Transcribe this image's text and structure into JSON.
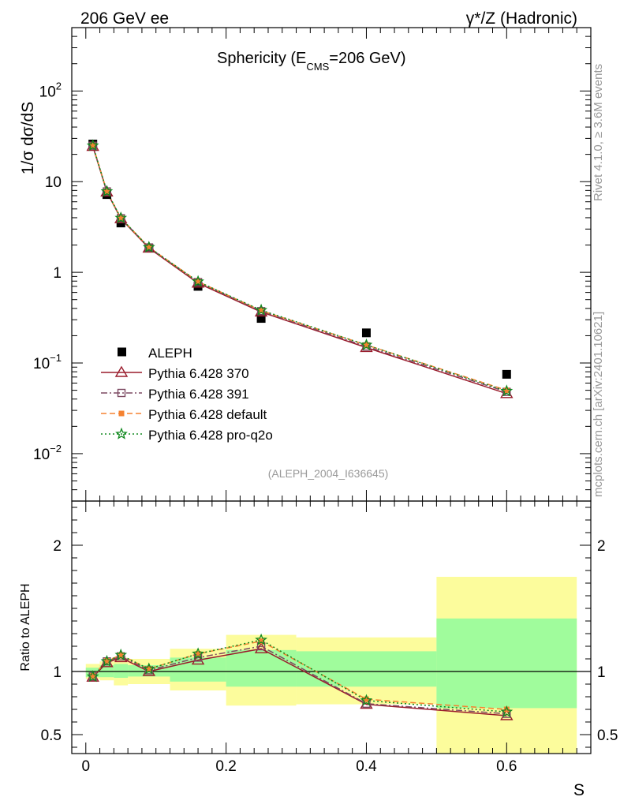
{
  "header": {
    "left_label": "206 GeV ee",
    "right_label": "γ*/Z (Hadronic)"
  },
  "side_labels": {
    "rivet": "Rivet 4.1.0, ≥ 3.6M events",
    "mcplots": "mcplots.cern.ch [arXiv:2401.10621]"
  },
  "chart_data": {
    "type": "scatter",
    "title_prefix": "Sphericity (E",
    "title_sub": "CMS",
    "title_suffix": "=206 GeV)",
    "analysis_id": "(ALEPH_2004_I636645)",
    "ylabel_main": "1/σ  dσ/dS",
    "ylabel_ratio": "Ratio to ALEPH",
    "xlabel": "S",
    "x_range": [
      -0.02,
      0.72
    ],
    "y_range_main": [
      0.003,
      500
    ],
    "y_range_ratio": [
      0.35,
      2.35
    ],
    "x_ticks": [
      "0",
      "0.2",
      "0.4",
      "0.6"
    ],
    "x_tick_values": [
      0,
      0.2,
      0.4,
      0.6
    ],
    "y_ticks_main": [
      {
        "value": 0.01,
        "base": "10",
        "exp": "−2"
      },
      {
        "value": 0.1,
        "base": "10",
        "exp": "−1"
      },
      {
        "value": 1,
        "base": "1",
        "exp": ""
      },
      {
        "value": 10,
        "base": "10",
        "exp": ""
      },
      {
        "value": 100,
        "base": "10",
        "exp": "2"
      }
    ],
    "y_ticks_ratio": [
      {
        "value": 0.5,
        "label": "0.5"
      },
      {
        "value": 1,
        "label": "1"
      },
      {
        "value": 2,
        "label": "2"
      }
    ],
    "data": {
      "name": "ALEPH",
      "color": "#000000",
      "x": [
        0.01,
        0.03,
        0.05,
        0.09,
        0.16,
        0.25,
        0.4,
        0.6
      ],
      "y": [
        26,
        7.2,
        3.5,
        1.85,
        0.7,
        0.31,
        0.215,
        0.075
      ]
    },
    "series": [
      {
        "name": "Pythia 6.428 370",
        "color": "#9a1c2c",
        "dash": "solid",
        "marker": "triangle",
        "values": [
          24.5,
          7.7,
          3.9,
          1.85,
          0.76,
          0.365,
          0.148,
          0.046
        ]
      },
      {
        "name": "Pythia 6.428 391",
        "color": "#7d4a62",
        "dash": "dashdot",
        "marker": "square",
        "values": [
          24.9,
          7.8,
          3.95,
          1.88,
          0.78,
          0.373,
          0.152,
          0.048
        ]
      },
      {
        "name": "Pythia 6.428 default",
        "color": "#f58231",
        "dash": "dashed",
        "marker": "filled-square",
        "values": [
          25.1,
          7.8,
          3.97,
          1.89,
          0.79,
          0.378,
          0.158,
          0.05
        ]
      },
      {
        "name": "Pythia 6.428 pro-q2o",
        "color": "#11891f",
        "dash": "dotted",
        "marker": "star",
        "values": [
          25.0,
          7.8,
          3.97,
          1.89,
          0.79,
          0.382,
          0.158,
          0.049
        ]
      }
    ],
    "ratios": [
      [
        0.955,
        1.07,
        1.11,
        1.0,
        1.09,
        1.18,
        0.74,
        0.65
      ],
      [
        0.96,
        1.08,
        1.12,
        1.01,
        1.11,
        1.2,
        0.745,
        0.665
      ],
      [
        0.965,
        1.085,
        1.13,
        1.02,
        1.14,
        1.24,
        0.78,
        0.7
      ],
      [
        0.96,
        1.08,
        1.13,
        1.02,
        1.14,
        1.25,
        0.77,
        0.68
      ]
    ],
    "bands": [
      {
        "x0": 0.0,
        "x1": 0.02,
        "g0": 0.955,
        "g1": 1.03,
        "y0": 0.94,
        "y1": 1.06
      },
      {
        "x0": 0.02,
        "x1": 0.04,
        "g0": 0.955,
        "g1": 1.05,
        "y0": 0.93,
        "y1": 1.08
      },
      {
        "x0": 0.04,
        "x1": 0.06,
        "g0": 0.95,
        "g1": 1.06,
        "y0": 0.89,
        "y1": 1.11
      },
      {
        "x0": 0.06,
        "x1": 0.12,
        "g0": 0.96,
        "g1": 1.05,
        "y0": 0.9,
        "y1": 1.1
      },
      {
        "x0": 0.12,
        "x1": 0.2,
        "g0": 0.92,
        "g1": 1.11,
        "y0": 0.85,
        "y1": 1.18
      },
      {
        "x0": 0.2,
        "x1": 0.3,
        "g0": 0.88,
        "g1": 1.17,
        "y0": 0.73,
        "y1": 1.29
      },
      {
        "x0": 0.3,
        "x1": 0.5,
        "g0": 0.88,
        "g1": 1.16,
        "y0": 0.74,
        "y1": 1.27
      },
      {
        "x0": 0.5,
        "x1": 0.7,
        "g0": 0.71,
        "g1": 1.42,
        "y0": 0.35,
        "y1": 1.75
      }
    ],
    "band_colors": {
      "inner": "#a0fc9c",
      "outer": "#fcfc9c"
    }
  }
}
